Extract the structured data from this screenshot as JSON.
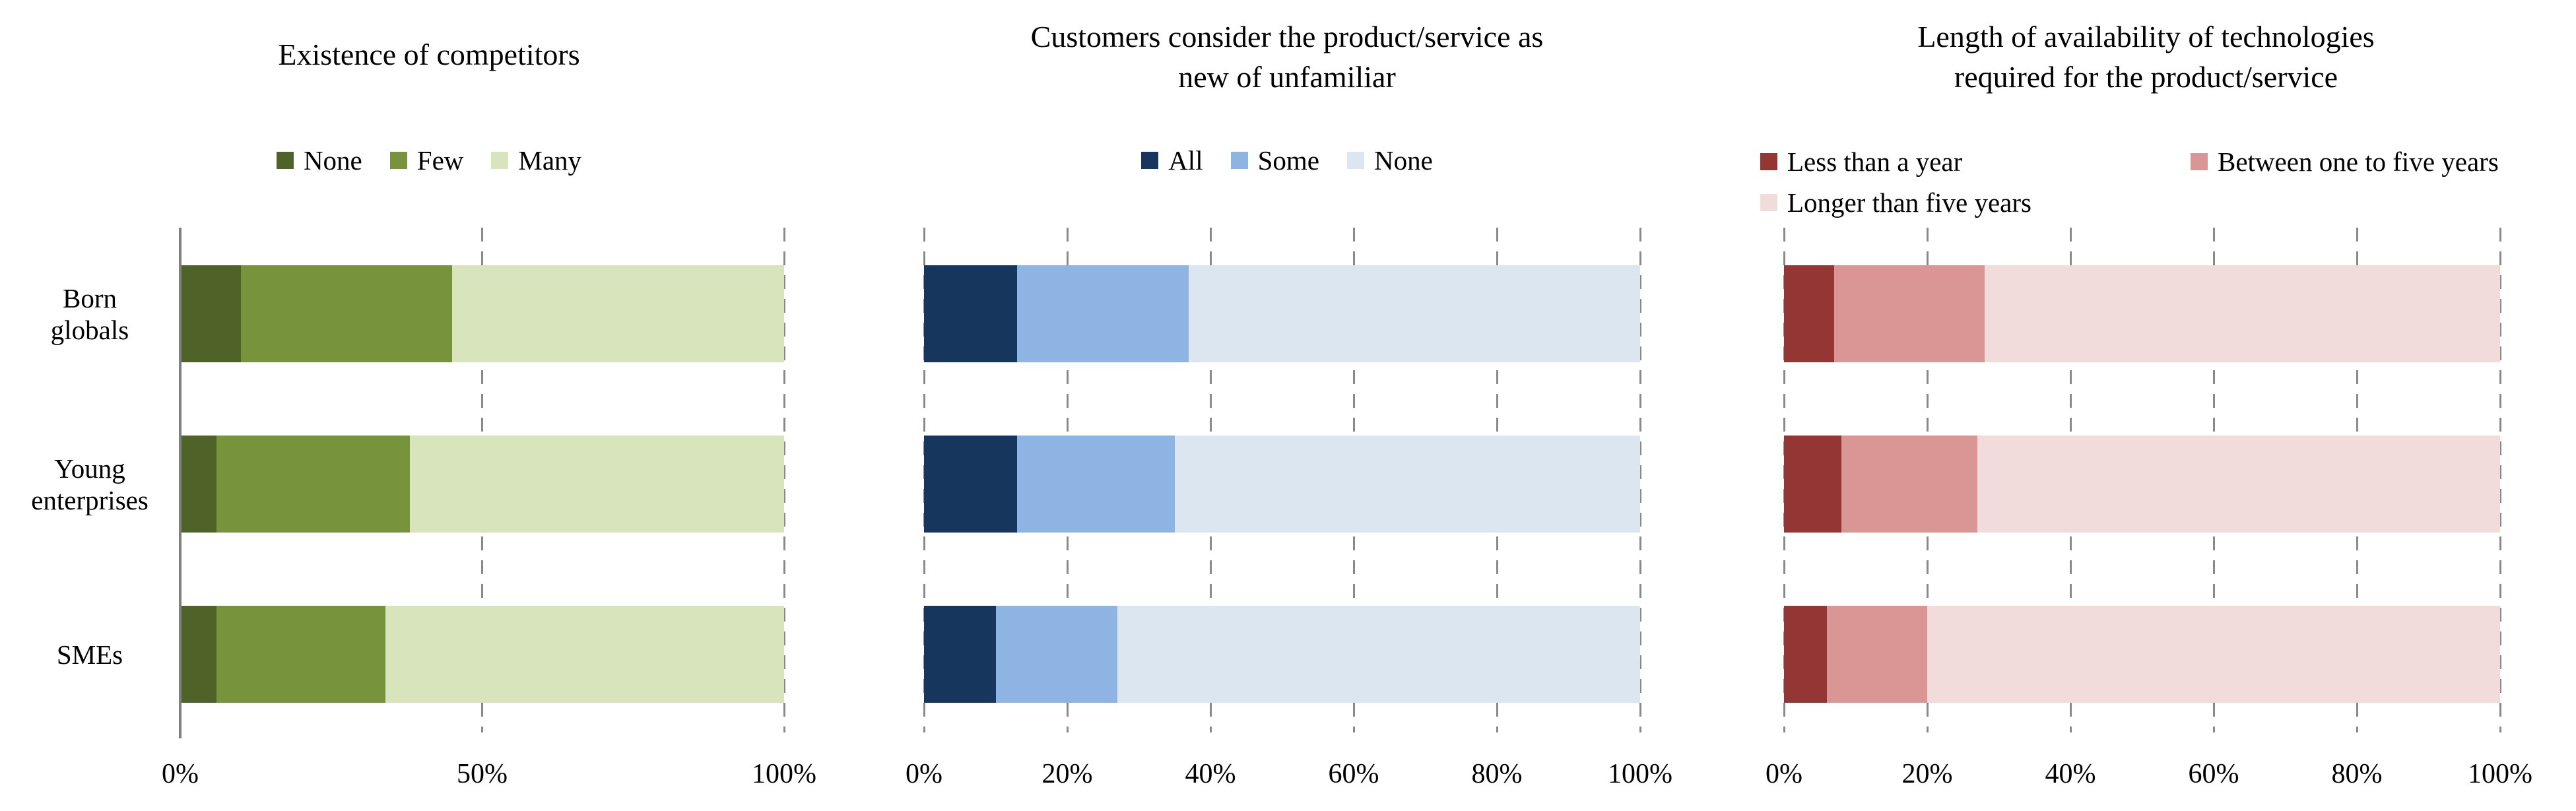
{
  "figure": {
    "background": "#ffffff",
    "text_color": "#000000",
    "gridline_color": "#898989",
    "axis_line_color": "#808080",
    "gridline_style": "dashed"
  },
  "chart_data": [
    {
      "type": "bar",
      "stacked": true,
      "orientation": "horizontal",
      "title": "Existence of competitors",
      "title_lines": [
        "Existence of competitors",
        ""
      ],
      "categories": [
        "Born globals",
        "Young enterprises",
        "SMEs"
      ],
      "categories_display": [
        [
          "Born",
          "globals"
        ],
        [
          "Young",
          "enterprises"
        ],
        [
          "SMEs"
        ]
      ],
      "series": [
        {
          "name": "None",
          "color": "#4f6228",
          "values": [
            10,
            6,
            6
          ]
        },
        {
          "name": "Few",
          "color": "#77933c",
          "values": [
            35,
            32,
            28
          ]
        },
        {
          "name": "Many",
          "color": "#d7e4bc",
          "values": [
            55,
            62,
            66
          ]
        }
      ],
      "xlim": [
        0,
        100
      ],
      "unit": "%",
      "x_ticks": [
        {
          "value": 0,
          "label": "0%"
        },
        {
          "value": 50,
          "label": "50%"
        },
        {
          "value": 100,
          "label": "100%"
        }
      ],
      "grid": "vertical-dashed",
      "has_solid_zero_axis": true,
      "legend_position": "top"
    },
    {
      "type": "bar",
      "stacked": true,
      "orientation": "horizontal",
      "title": "Customers consider the product/service as new of unfamiliar",
      "title_lines": [
        "Customers consider the product/service as",
        "new of unfamiliar"
      ],
      "categories": [
        "Born globals",
        "Young enterprises",
        "SMEs"
      ],
      "series": [
        {
          "name": "All",
          "color": "#17365d",
          "values": [
            13,
            13,
            10
          ]
        },
        {
          "name": "Some",
          "color": "#8db4e2",
          "values": [
            24,
            22,
            17
          ]
        },
        {
          "name": "None",
          "color": "#dce6f1",
          "values": [
            63,
            65,
            73
          ]
        }
      ],
      "xlim": [
        0,
        100
      ],
      "unit": "%",
      "x_ticks": [
        {
          "value": 0,
          "label": "0%"
        },
        {
          "value": 20,
          "label": "20%"
        },
        {
          "value": 40,
          "label": "40%"
        },
        {
          "value": 60,
          "label": "60%"
        },
        {
          "value": 80,
          "label": "80%"
        },
        {
          "value": 100,
          "label": "100%"
        }
      ],
      "grid": "vertical-dashed",
      "has_solid_zero_axis": false,
      "legend_position": "top"
    },
    {
      "type": "bar",
      "stacked": true,
      "orientation": "horizontal",
      "title": "Length of availability of technologies required for the product/service",
      "title_lines": [
        "Length of availability of technologies",
        "required for the product/service"
      ],
      "categories": [
        "Born globals",
        "Young enterprises",
        "SMEs"
      ],
      "series": [
        {
          "name": "Less than a year",
          "color": "#943634",
          "values": [
            7,
            8,
            6
          ]
        },
        {
          "name": "Between one to five years",
          "color": "#d99694",
          "values": [
            21,
            19,
            14
          ]
        },
        {
          "name": "Longer than five years",
          "color": "#f2dcdb",
          "values": [
            72,
            73,
            80
          ]
        }
      ],
      "xlim": [
        0,
        100
      ],
      "unit": "%",
      "x_ticks": [
        {
          "value": 0,
          "label": "0%"
        },
        {
          "value": 20,
          "label": "20%"
        },
        {
          "value": 40,
          "label": "40%"
        },
        {
          "value": 60,
          "label": "60%"
        },
        {
          "value": 80,
          "label": "80%"
        },
        {
          "value": 100,
          "label": "100%"
        }
      ],
      "grid": "vertical-dashed",
      "has_solid_zero_axis": false,
      "legend_position": "top",
      "legend_layout": "two-rows"
    }
  ]
}
